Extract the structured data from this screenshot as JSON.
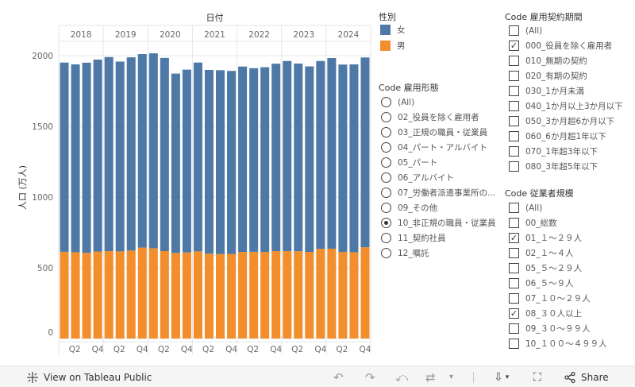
{
  "colors": {
    "female": "#4e79a7",
    "male": "#f28e2b",
    "grid": "#e6e6e6",
    "axis": "#999999"
  },
  "chart_data": {
    "type": "bar",
    "stacked": true,
    "title": "日付",
    "ylabel": "人口 (万人)",
    "ylim": [
      0,
      2000
    ],
    "yticks": [
      0,
      500,
      1000,
      1500,
      2000
    ],
    "years": [
      "2018",
      "2019",
      "2020",
      "2021",
      "2022",
      "2023",
      "2024"
    ],
    "quarter_labels": [
      "Q2",
      "Q4"
    ],
    "categories": [
      "2018Q1",
      "2018Q2",
      "2018Q3",
      "2018Q4",
      "2019Q1",
      "2019Q2",
      "2019Q3",
      "2019Q4",
      "2020Q1",
      "2020Q2",
      "2020Q3",
      "2020Q4",
      "2021Q1",
      "2021Q2",
      "2021Q3",
      "2021Q4",
      "2022Q1",
      "2022Q2",
      "2022Q3",
      "2022Q4",
      "2023Q1",
      "2023Q2",
      "2023Q3",
      "2023Q4",
      "2024Q1",
      "2024Q2",
      "2024Q3",
      "2024Q4"
    ],
    "series": [
      {
        "name": "男",
        "values": [
          613,
          610,
          606,
          615,
          618,
          616,
          622,
          643,
          638,
          618,
          605,
          609,
          616,
          600,
          597,
          598,
          612,
          613,
          612,
          618,
          618,
          617,
          612,
          634,
          635,
          612,
          610,
          645
        ]
      },
      {
        "name": "女",
        "values": [
          1338,
          1328,
          1344,
          1357,
          1372,
          1342,
          1366,
          1368,
          1378,
          1366,
          1268,
          1292,
          1335,
          1299,
          1300,
          1294,
          1311,
          1298,
          1306,
          1325,
          1344,
          1327,
          1312,
          1328,
          1348,
          1325,
          1328,
          1342
        ]
      }
    ]
  },
  "legend_gender": {
    "title": "性別",
    "items": [
      {
        "label": "女",
        "color": "#4e79a7"
      },
      {
        "label": "男",
        "color": "#f28e2b"
      }
    ]
  },
  "filter_employment": {
    "title": "Code 雇用形態",
    "items": [
      {
        "label": "(All)",
        "selected": false
      },
      {
        "label": "02_役員を除く雇用者",
        "selected": false
      },
      {
        "label": "03_正規の職員・従業員",
        "selected": false
      },
      {
        "label": "04_パート・アルバイト",
        "selected": false
      },
      {
        "label": "05_パート",
        "selected": false
      },
      {
        "label": "06_アルバイト",
        "selected": false
      },
      {
        "label": "07_労働者派遣事業所の...",
        "selected": false
      },
      {
        "label": "09_その他",
        "selected": false
      },
      {
        "label": "10_非正規の職員・従業員",
        "selected": true
      },
      {
        "label": "11_契約社員",
        "selected": false
      },
      {
        "label": "12_嘱託",
        "selected": false
      }
    ]
  },
  "filter_contract": {
    "title": "Code 雇用契約期間",
    "items": [
      {
        "label": "(All)",
        "checked": false
      },
      {
        "label": "000_役員を除く雇用者",
        "checked": true
      },
      {
        "label": "010_無期の契約",
        "checked": false
      },
      {
        "label": "020_有期の契約",
        "checked": false
      },
      {
        "label": "030_1か月未満",
        "checked": false
      },
      {
        "label": "040_1か月以上3か月以下",
        "checked": false
      },
      {
        "label": "050_3か月超6か月以下",
        "checked": false
      },
      {
        "label": "060_6か月超1年以下",
        "checked": false
      },
      {
        "label": "070_1年超3年以下",
        "checked": false
      },
      {
        "label": "080_3年超5年以下",
        "checked": false
      }
    ]
  },
  "filter_size": {
    "title": "Code 従業者規模",
    "items": [
      {
        "label": "(All)",
        "checked": false
      },
      {
        "label": "00_総数",
        "checked": false
      },
      {
        "label": "01_１～２９人",
        "checked": true
      },
      {
        "label": "02_１～４人",
        "checked": false
      },
      {
        "label": "05_５～２９人",
        "checked": false
      },
      {
        "label": "06_５～９人",
        "checked": false
      },
      {
        "label": "07_１０～２９人",
        "checked": false
      },
      {
        "label": "08_３０人以上",
        "checked": true
      },
      {
        "label": "09_３０～９９人",
        "checked": false
      },
      {
        "label": "10_１００～４９９人",
        "checked": false
      }
    ]
  },
  "toolbar": {
    "view_label": "View on Tableau Public",
    "share_label": "Share"
  }
}
